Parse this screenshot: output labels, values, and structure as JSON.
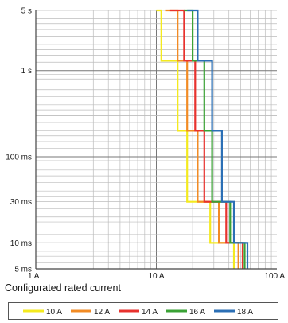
{
  "chart_data": {
    "type": "line",
    "title": "",
    "xlabel": "",
    "ylabel": "",
    "x_scale": "log",
    "y_scale": "log",
    "xlim": [
      "1 A",
      "100 A"
    ],
    "ylim": [
      "5 ms",
      "5 s"
    ],
    "x_tick_labels": [
      "1 A",
      "10 A",
      "100 A"
    ],
    "y_tick_labels": [
      "5 s",
      "1 s",
      "100 ms",
      "30 ms",
      "10 ms",
      "5 ms"
    ],
    "grid": true,
    "legend_title": "Configurated rated current",
    "legend_position": "bottom",
    "series": [
      {
        "name": "10 A",
        "color": "#f4ea1e",
        "points": [
          [
            "10 A",
            "5 s"
          ],
          [
            "11 A",
            "5 s"
          ],
          [
            "11 A",
            "1.3 s"
          ],
          [
            "15 A",
            "1.3 s"
          ],
          [
            "15 A",
            "0.2 s"
          ],
          [
            "18 A",
            "0.2 s"
          ],
          [
            "18 A",
            "0.03 s"
          ],
          [
            "28 A",
            "0.03 s"
          ],
          [
            "28 A",
            "0.01 s"
          ],
          [
            "44 A",
            "0.01 s"
          ],
          [
            "44 A",
            "0.005 s"
          ]
        ]
      },
      {
        "name": "12 A",
        "color": "#f28b24",
        "points": [
          [
            "12 A",
            "5 s"
          ],
          [
            "15 A",
            "5 s"
          ],
          [
            "15 A",
            "1.3 s"
          ],
          [
            "18 A",
            "1.3 s"
          ],
          [
            "18 A",
            "0.2 s"
          ],
          [
            "22 A",
            "0.2 s"
          ],
          [
            "22 A",
            "0.03 s"
          ],
          [
            "33 A",
            "0.03 s"
          ],
          [
            "33 A",
            "0.01 s"
          ],
          [
            "48 A",
            "0.01 s"
          ],
          [
            "48 A",
            "0.005 s"
          ]
        ]
      },
      {
        "name": "14 A",
        "color": "#e8322e",
        "points": [
          [
            "13 A",
            "5 s"
          ],
          [
            "17 A",
            "5 s"
          ],
          [
            "17 A",
            "1.3 s"
          ],
          [
            "21 A",
            "1.3 s"
          ],
          [
            "21 A",
            "0.2 s"
          ],
          [
            "25 A",
            "0.2 s"
          ],
          [
            "25 A",
            "0.03 s"
          ],
          [
            "38 A",
            "0.03 s"
          ],
          [
            "38 A",
            "0.01 s"
          ],
          [
            "52 A",
            "0.01 s"
          ],
          [
            "52 A",
            "0.005 s"
          ]
        ]
      },
      {
        "name": "16 A",
        "color": "#3aa235",
        "points": [
          [
            "17 A",
            "5 s"
          ],
          [
            "20 A",
            "5 s"
          ],
          [
            "20 A",
            "1.3 s"
          ],
          [
            "25 A",
            "1.3 s"
          ],
          [
            "25 A",
            "0.2 s"
          ],
          [
            "29 A",
            "0.2 s"
          ],
          [
            "29 A",
            "0.03 s"
          ],
          [
            "41 A",
            "0.03 s"
          ],
          [
            "41 A",
            "0.01 s"
          ],
          [
            "54 A",
            "0.01 s"
          ],
          [
            "54 A",
            "0.005 s"
          ]
        ]
      },
      {
        "name": "18 A",
        "color": "#2b6fb5",
        "points": [
          [
            "18 A",
            "5 s"
          ],
          [
            "22 A",
            "5 s"
          ],
          [
            "22 A",
            "1.3 s"
          ],
          [
            "29 A",
            "1.3 s"
          ],
          [
            "29 A",
            "0.2 s"
          ],
          [
            "35 A",
            "0.2 s"
          ],
          [
            "35 A",
            "0.03 s"
          ],
          [
            "44 A",
            "0.03 s"
          ],
          [
            "44 A",
            "0.01 s"
          ],
          [
            "57 A",
            "0.01 s"
          ],
          [
            "57 A",
            "0.005 s"
          ]
        ]
      }
    ]
  }
}
